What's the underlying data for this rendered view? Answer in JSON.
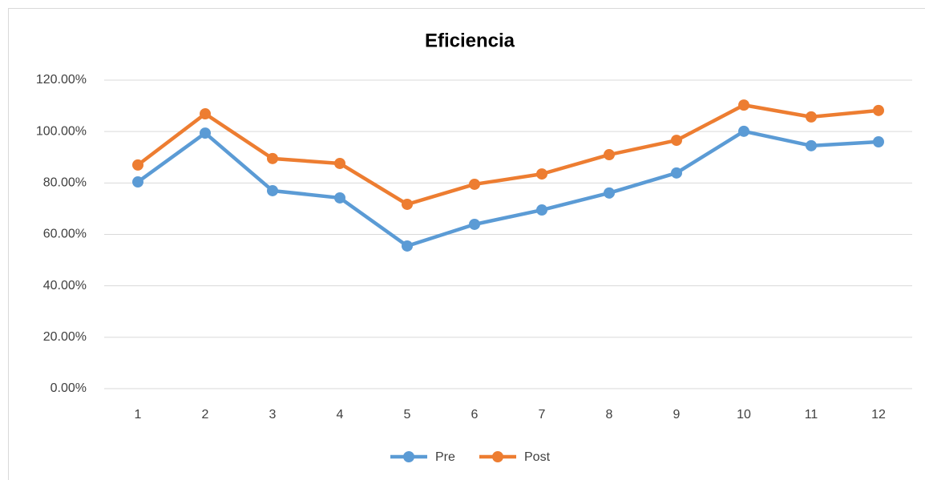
{
  "chart_data": {
    "type": "line",
    "title": "Eficiencia",
    "categories": [
      "1",
      "2",
      "3",
      "4",
      "5",
      "6",
      "7",
      "8",
      "9",
      "10",
      "11",
      "12"
    ],
    "series": [
      {
        "name": "Pre",
        "color": "#5b9bd5",
        "values": [
          80.4,
          99.4,
          77.0,
          74.2,
          55.5,
          63.9,
          69.5,
          76.1,
          83.9,
          100.1,
          94.5,
          96.0
        ]
      },
      {
        "name": "Post",
        "color": "#ed7d31",
        "values": [
          87.0,
          106.9,
          89.5,
          87.6,
          71.7,
          79.5,
          83.5,
          91.0,
          96.6,
          110.3,
          105.7,
          108.2
        ]
      }
    ],
    "ylim": [
      0,
      120
    ],
    "yticks": [
      {
        "value": 0,
        "label": "0.00%"
      },
      {
        "value": 20,
        "label": "20.00%"
      },
      {
        "value": 40,
        "label": "40.00%"
      },
      {
        "value": 60,
        "label": "60.00%"
      },
      {
        "value": 80,
        "label": "80.00%"
      },
      {
        "value": 100,
        "label": "100.00%"
      },
      {
        "value": 120,
        "label": "120.00%"
      }
    ],
    "grid": true,
    "legend": "bottom"
  }
}
